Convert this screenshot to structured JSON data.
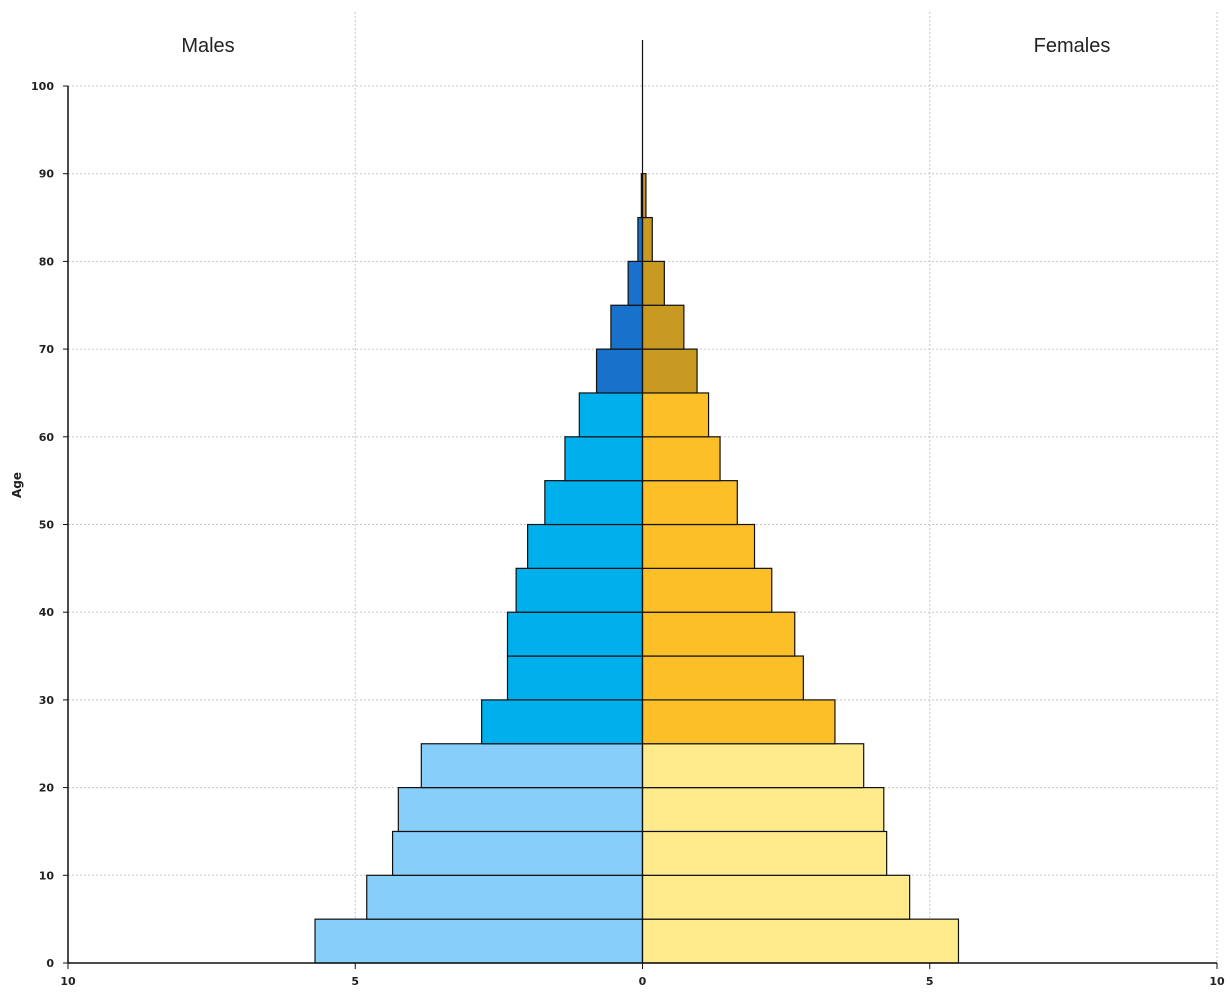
{
  "chart_data": {
    "type": "bar",
    "orientation": "horizontal",
    "subtype": "population-pyramid",
    "ylabel": "Age",
    "side_labels": {
      "left": "Males",
      "right": "Females"
    },
    "x_ticks": [
      "10",
      "5",
      "0",
      "5",
      "10"
    ],
    "y_ticks": [
      "0",
      "10",
      "20",
      "30",
      "40",
      "50",
      "60",
      "70",
      "80",
      "90",
      "100"
    ],
    "xlim": [
      -10,
      10
    ],
    "ylim": [
      0,
      100
    ],
    "grid": true,
    "age_groups": [
      {
        "range": "0-4",
        "male": 5.7,
        "female": 5.5,
        "male_color": "#87cefa",
        "female_color": "#ffeb8c"
      },
      {
        "range": "5-9",
        "male": 4.8,
        "female": 4.65,
        "male_color": "#87cefa",
        "female_color": "#ffeb8c"
      },
      {
        "range": "10-14",
        "male": 4.35,
        "female": 4.25,
        "male_color": "#87cefa",
        "female_color": "#ffeb8c"
      },
      {
        "range": "15-19",
        "male": 4.25,
        "female": 4.2,
        "male_color": "#87cefa",
        "female_color": "#ffeb8c"
      },
      {
        "range": "20-24",
        "male": 3.85,
        "female": 3.85,
        "male_color": "#87cefa",
        "female_color": "#ffeb8c"
      },
      {
        "range": "25-29",
        "male": 2.8,
        "female": 3.35,
        "male_color": "#00b0ec",
        "female_color": "#fdbf28"
      },
      {
        "range": "30-34",
        "male": 2.35,
        "female": 2.8,
        "male_color": "#00b0ec",
        "female_color": "#fdbf28"
      },
      {
        "range": "35-39",
        "male": 2.35,
        "female": 2.65,
        "male_color": "#00b0ec",
        "female_color": "#fdbf28"
      },
      {
        "range": "40-44",
        "male": 2.2,
        "female": 2.25,
        "male_color": "#00b0ec",
        "female_color": "#fdbf28"
      },
      {
        "range": "45-49",
        "male": 2.0,
        "female": 1.95,
        "male_color": "#00b0ec",
        "female_color": "#fdbf28"
      },
      {
        "range": "50-54",
        "male": 1.7,
        "female": 1.65,
        "male_color": "#00b0ec",
        "female_color": "#fdbf28"
      },
      {
        "range": "55-59",
        "male": 1.35,
        "female": 1.35,
        "male_color": "#00b0ec",
        "female_color": "#fdbf28"
      },
      {
        "range": "60-64",
        "male": 1.1,
        "female": 1.15,
        "male_color": "#00b0ec",
        "female_color": "#fdbf28"
      },
      {
        "range": "65-69",
        "male": 0.8,
        "female": 0.95,
        "male_color": "#1872cc",
        "female_color": "#c89a22"
      },
      {
        "range": "70-74",
        "male": 0.55,
        "female": 0.72,
        "male_color": "#1872cc",
        "female_color": "#c89a22"
      },
      {
        "range": "75-79",
        "male": 0.25,
        "female": 0.38,
        "male_color": "#1872cc",
        "female_color": "#c89a22"
      },
      {
        "range": "80-84",
        "male": 0.08,
        "female": 0.17,
        "male_color": "#1872cc",
        "female_color": "#c89a22"
      },
      {
        "range": "85-89",
        "male": 0.02,
        "female": 0.06,
        "male_color": "#1872cc",
        "female_color": "#c89a22"
      }
    ]
  }
}
